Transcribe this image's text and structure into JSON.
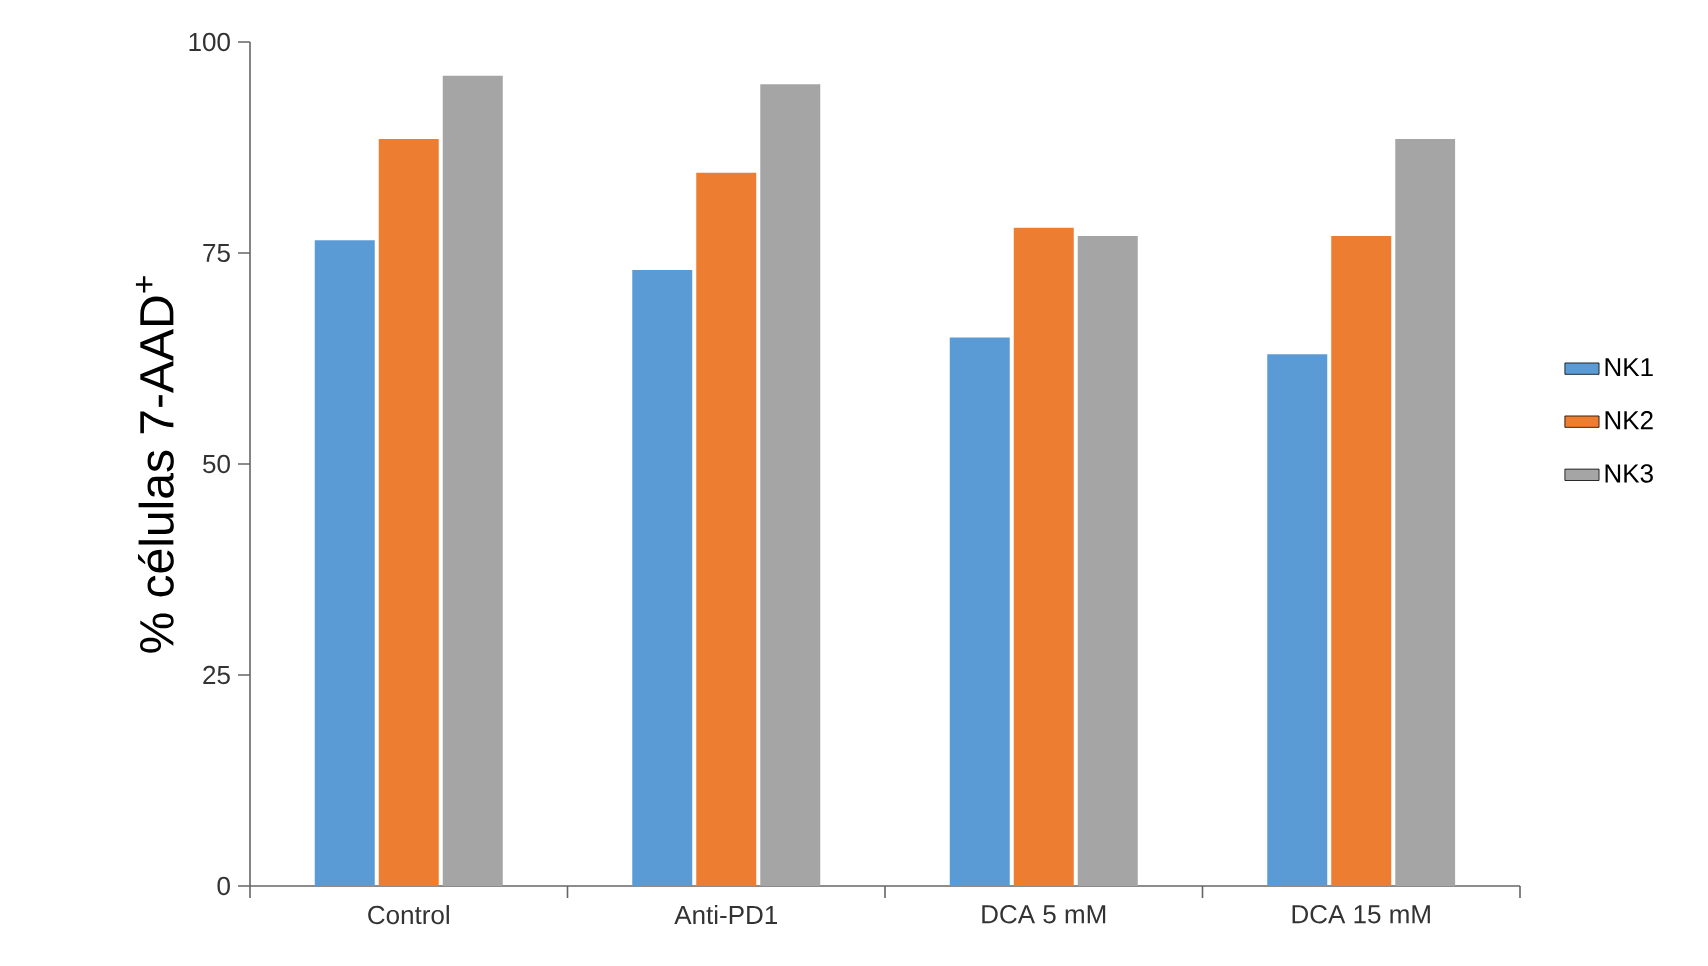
{
  "chart_data": {
    "type": "bar",
    "ylabel": "% células 7-AAD$^{+}$",
    "categories": [
      "Control",
      "Anti-PD1",
      "DCA 5 mM",
      "DCA 15 mM"
    ],
    "series": [
      {
        "name": "NK1",
        "color": "#5b9bd5",
        "values": [
          76.5,
          73,
          65,
          63
        ]
      },
      {
        "name": "NK2",
        "color": "#ed7d31",
        "values": [
          88.5,
          84.5,
          78,
          77
        ]
      },
      {
        "name": "NK3",
        "color": "#a5a5a5",
        "values": [
          96,
          95,
          77,
          88.5
        ]
      }
    ],
    "ylim": [
      0,
      100
    ],
    "yticks": [
      0,
      25,
      50,
      75,
      100
    ],
    "legend": "right"
  }
}
